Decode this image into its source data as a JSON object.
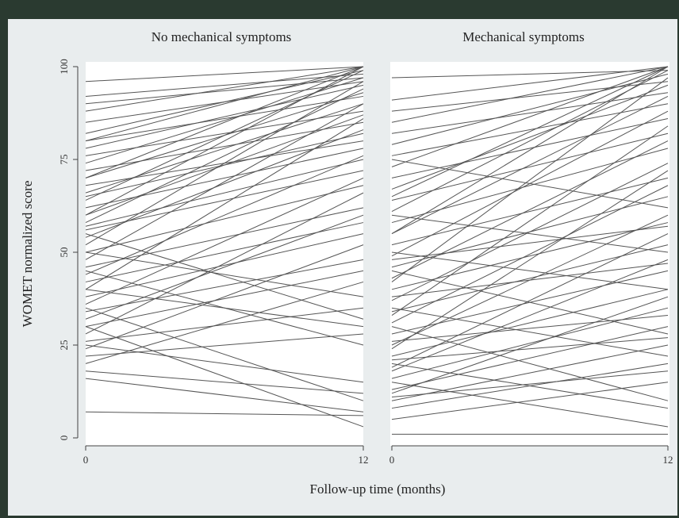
{
  "chart_data": {
    "type": "line",
    "ylabel": "WOMET normalized score",
    "xlabel": "Follow-up time (months)",
    "ylim": [
      0,
      100
    ],
    "xlim": [
      0,
      12
    ],
    "yticks": [
      "0",
      "25",
      "50",
      "75",
      "100"
    ],
    "xticks": [
      "0",
      "12"
    ],
    "grid": false,
    "line_color": "#555555",
    "panels": [
      {
        "title": "No mechanical symptoms",
        "x": [
          0,
          12
        ],
        "series": [
          {
            "values": [
              96,
              100
            ]
          },
          {
            "values": [
              92,
              98
            ]
          },
          {
            "values": [
              90,
              97
            ]
          },
          {
            "values": [
              88,
              100
            ]
          },
          {
            "values": [
              85,
              96
            ]
          },
          {
            "values": [
              82,
              99
            ]
          },
          {
            "values": [
              80,
              92
            ]
          },
          {
            "values": [
              78,
              95
            ]
          },
          {
            "values": [
              76,
              88
            ]
          },
          {
            "values": [
              74,
              97
            ]
          },
          {
            "values": [
              72,
              85
            ]
          },
          {
            "values": [
              70,
              93
            ]
          },
          {
            "values": [
              68,
              80
            ]
          },
          {
            "values": [
              66,
              90
            ]
          },
          {
            "values": [
              64,
              99
            ]
          },
          {
            "values": [
              62,
              78
            ]
          },
          {
            "values": [
              60,
              87
            ]
          },
          {
            "values": [
              58,
              94
            ]
          },
          {
            "values": [
              56,
              72
            ]
          },
          {
            "values": [
              54,
              83
            ]
          },
          {
            "values": [
              52,
              96
            ]
          },
          {
            "values": [
              50,
              68
            ]
          },
          {
            "values": [
              48,
              90
            ]
          },
          {
            "values": [
              46,
              62
            ]
          },
          {
            "values": [
              44,
              76
            ]
          },
          {
            "values": [
              42,
              58
            ]
          },
          {
            "values": [
              40,
              86
            ]
          },
          {
            "values": [
              38,
              55
            ]
          },
          {
            "values": [
              36,
              70
            ]
          },
          {
            "values": [
              34,
              48
            ]
          },
          {
            "values": [
              32,
              60
            ]
          },
          {
            "values": [
              30,
              45
            ]
          },
          {
            "values": [
              28,
              66
            ]
          },
          {
            "values": [
              26,
              35
            ]
          },
          {
            "values": [
              24,
              52
            ]
          },
          {
            "values": [
              22,
              28
            ]
          },
          {
            "values": [
              20,
              42
            ]
          },
          {
            "values": [
              18,
              12
            ]
          },
          {
            "values": [
              16,
              7
            ]
          },
          {
            "values": [
              7,
              6
            ]
          },
          {
            "values": [
              45,
              25
            ]
          },
          {
            "values": [
              40,
              30
            ]
          },
          {
            "values": [
              35,
              10
            ]
          },
          {
            "values": [
              30,
              3
            ]
          },
          {
            "values": [
              50,
              38
            ]
          },
          {
            "values": [
              55,
              32
            ]
          },
          {
            "values": [
              25,
              15
            ]
          },
          {
            "values": [
              80,
              100
            ]
          },
          {
            "values": [
              70,
              100
            ]
          },
          {
            "values": [
              60,
              100
            ]
          },
          {
            "values": [
              65,
              82
            ]
          },
          {
            "values": [
              57,
              75
            ]
          }
        ]
      },
      {
        "title": "Mechanical symptoms",
        "x": [
          0,
          12
        ],
        "series": [
          {
            "values": [
              97,
              99
            ]
          },
          {
            "values": [
              91,
              100
            ]
          },
          {
            "values": [
              88,
              96
            ]
          },
          {
            "values": [
              85,
              100
            ]
          },
          {
            "values": [
              82,
              93
            ]
          },
          {
            "values": [
              79,
              98
            ]
          },
          {
            "values": [
              76,
              90
            ]
          },
          {
            "values": [
              73,
              100
            ]
          },
          {
            "values": [
              70,
              86
            ]
          },
          {
            "values": [
              67,
              95
            ]
          },
          {
            "values": [
              64,
              82
            ]
          },
          {
            "values": [
              61,
              99
            ]
          },
          {
            "values": [
              58,
              78
            ]
          },
          {
            "values": [
              55,
              92
            ]
          },
          {
            "values": [
              52,
              70
            ]
          },
          {
            "values": [
              49,
              88
            ]
          },
          {
            "values": [
              46,
              65
            ]
          },
          {
            "values": [
              43,
              80
            ]
          },
          {
            "values": [
              40,
              58
            ]
          },
          {
            "values": [
              37,
              74
            ]
          },
          {
            "values": [
              34,
              52
            ]
          },
          {
            "values": [
              31,
              68
            ]
          },
          {
            "values": [
              28,
              45
            ]
          },
          {
            "values": [
              25,
              60
            ]
          },
          {
            "values": [
              22,
              40
            ]
          },
          {
            "values": [
              19,
              55
            ]
          },
          {
            "values": [
              16,
              35
            ]
          },
          {
            "values": [
              13,
              30
            ]
          },
          {
            "values": [
              10,
              25
            ]
          },
          {
            "values": [
              8,
              20
            ]
          },
          {
            "values": [
              5,
              15
            ]
          },
          {
            "values": [
              1,
              1
            ]
          },
          {
            "values": [
              30,
              10
            ]
          },
          {
            "values": [
              20,
              8
            ]
          },
          {
            "values": [
              15,
              3
            ]
          },
          {
            "values": [
              45,
              28
            ]
          },
          {
            "values": [
              35,
              22
            ]
          },
          {
            "values": [
              60,
              50
            ]
          },
          {
            "values": [
              50,
              40
            ]
          },
          {
            "values": [
              65,
              100
            ]
          },
          {
            "values": [
              55,
              100
            ]
          },
          {
            "values": [
              42,
              97
            ]
          },
          {
            "values": [
              33,
              84
            ]
          },
          {
            "values": [
              24,
              72
            ]
          },
          {
            "values": [
              18,
              48
            ]
          },
          {
            "values": [
              12,
              38
            ]
          },
          {
            "values": [
              75,
              62
            ]
          },
          {
            "values": [
              26,
              33
            ]
          },
          {
            "values": [
              38,
              47
            ]
          },
          {
            "values": [
              21,
              27
            ]
          },
          {
            "values": [
              48,
              57
            ]
          },
          {
            "values": [
              11,
              18
            ]
          }
        ]
      }
    ]
  }
}
